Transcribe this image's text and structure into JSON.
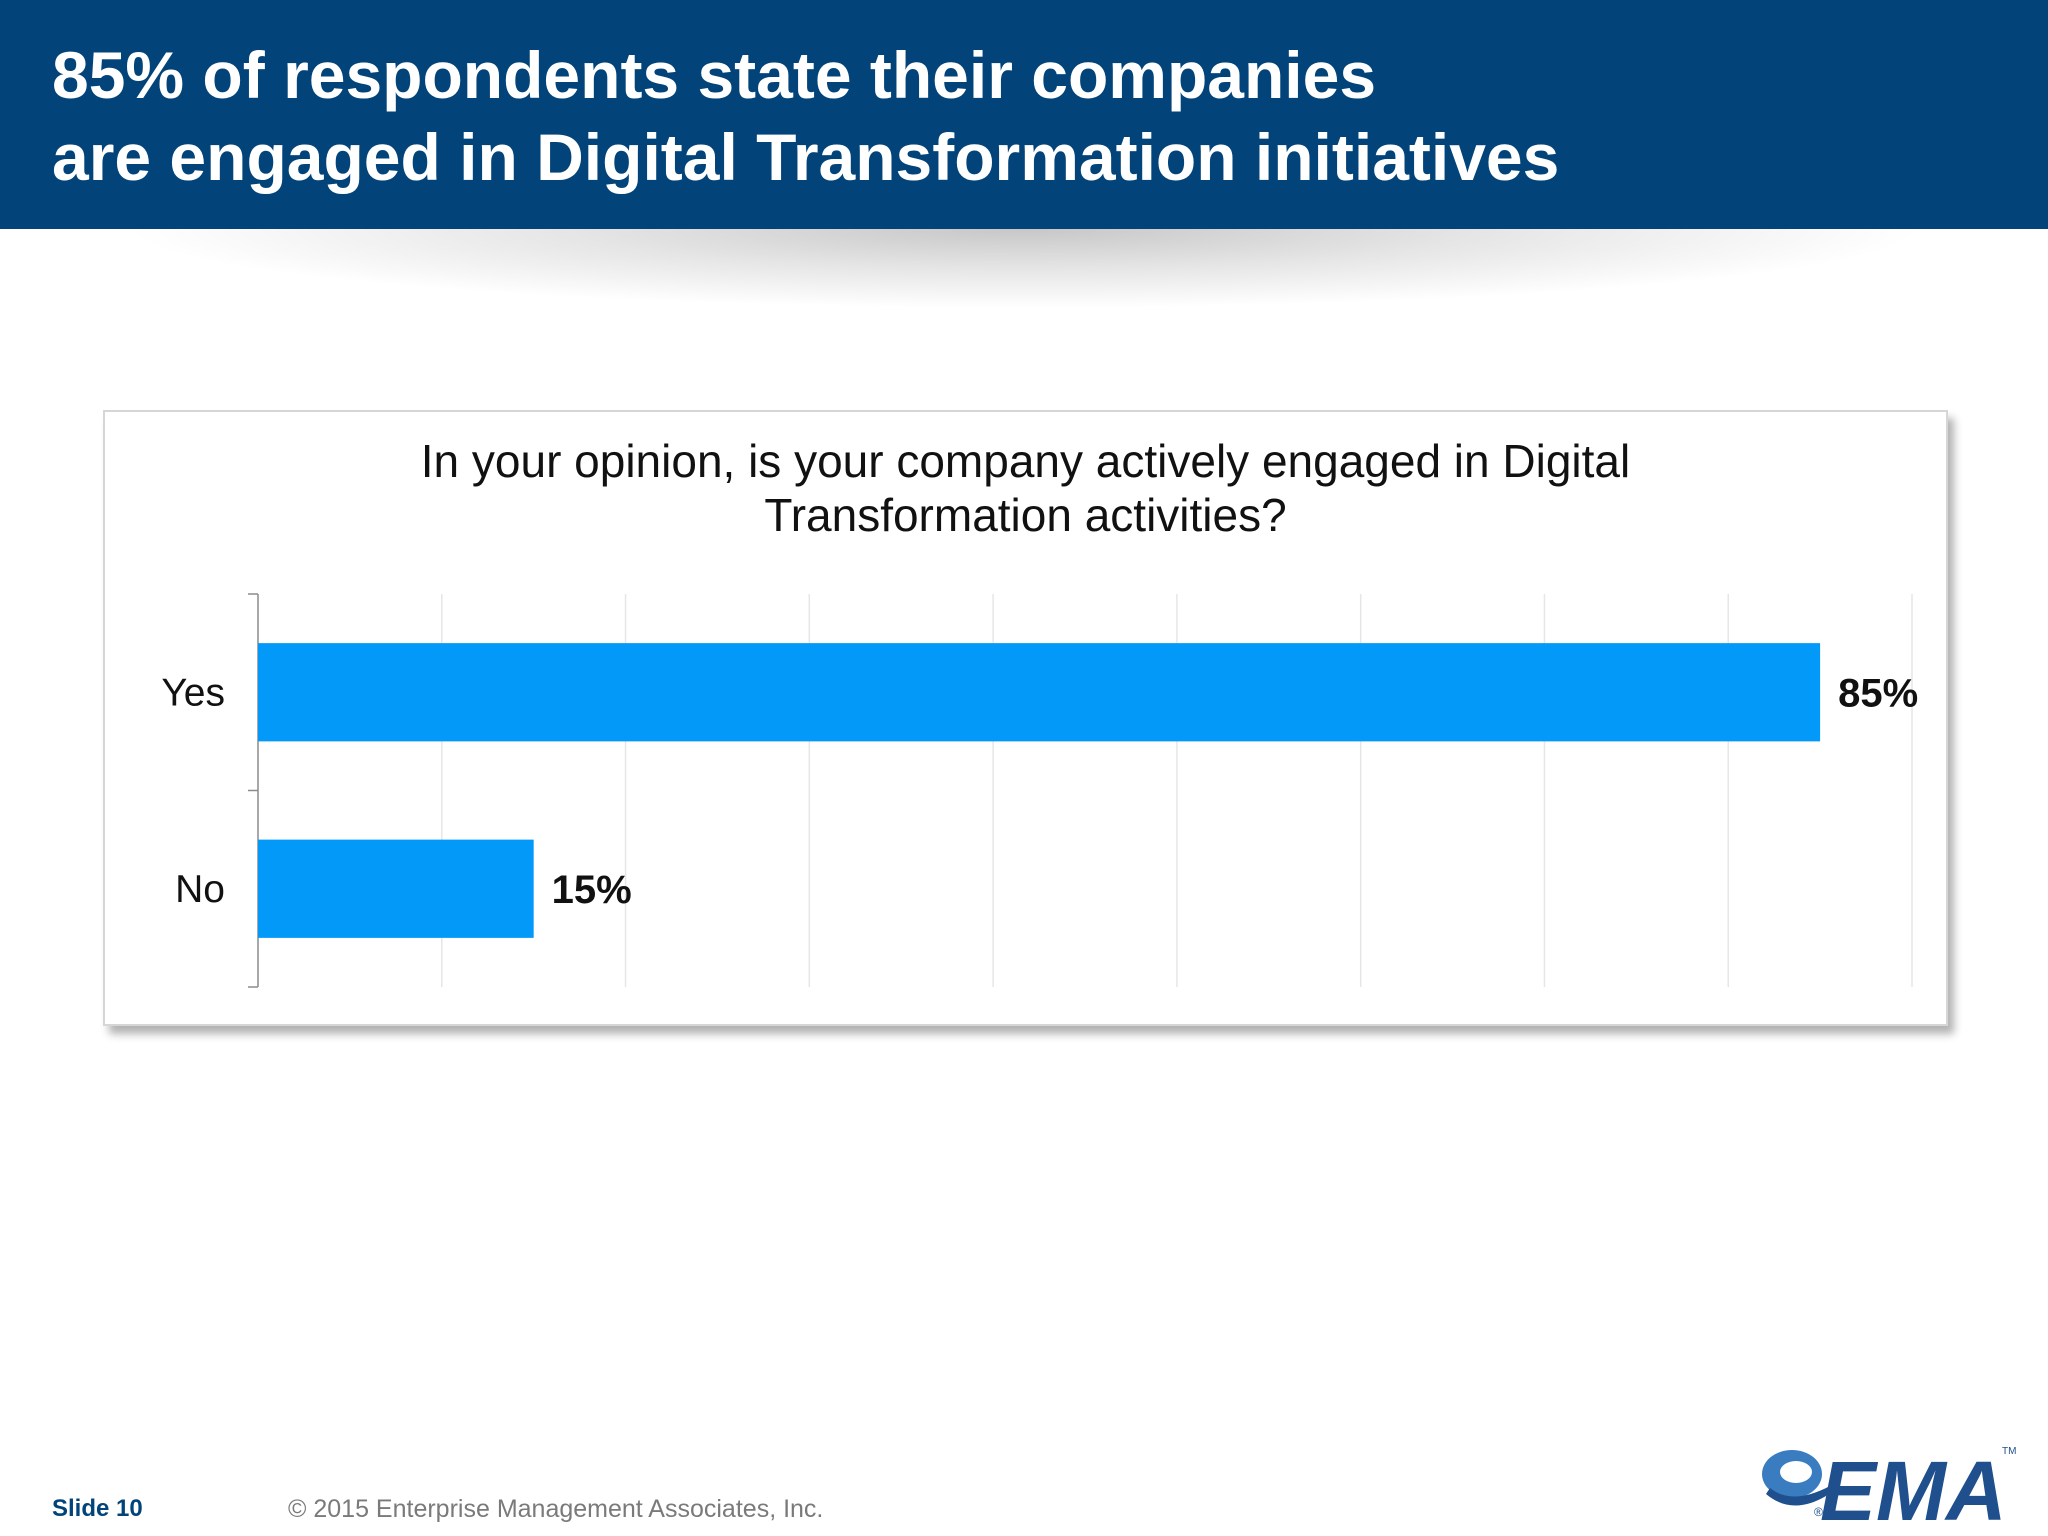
{
  "header": {
    "title_line1": "85% of respondents state their companies",
    "title_line2": "are engaged in Digital Transformation initiatives"
  },
  "chart_data": {
    "type": "bar",
    "orientation": "horizontal",
    "title": "In your opinion, is your company actively engaged in Digital Transformation activities?",
    "title_line1": "In your opinion, is your company actively engaged in Digital",
    "title_line2": "Transformation activities?",
    "categories": [
      "Yes",
      "No"
    ],
    "values": [
      85,
      15
    ],
    "data_labels": [
      "85%",
      "15%"
    ],
    "xlim": [
      0,
      90
    ],
    "grid": true,
    "legend": "none",
    "bar_color": "#0399f8"
  },
  "footer": {
    "slide_label": "Slide 10",
    "copyright": "© 2015 Enterprise Management Associates, Inc."
  },
  "logo": {
    "text": "EMA",
    "trademark": "TM",
    "registered": "®"
  },
  "colors": {
    "header_bg": "#02447a",
    "bar": "#0399f8",
    "footer_slide": "#02447a",
    "logo": "#1f4f8c"
  }
}
